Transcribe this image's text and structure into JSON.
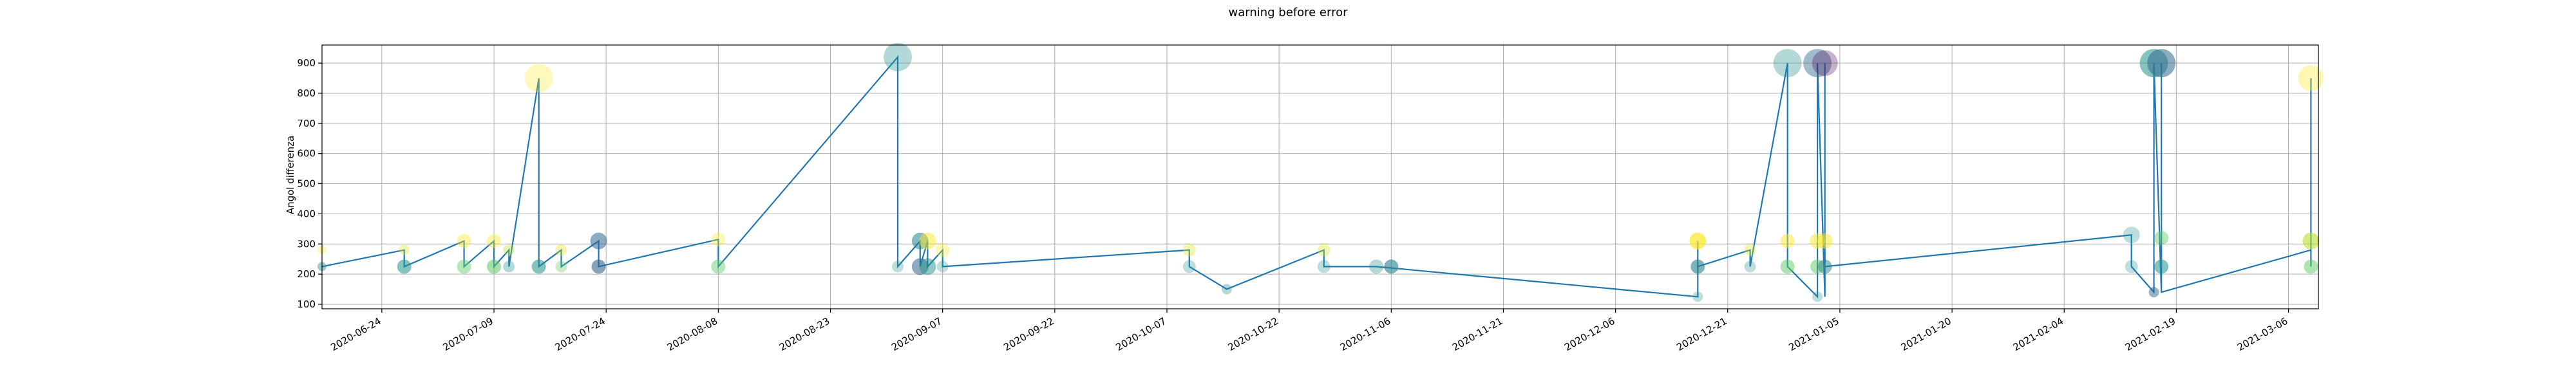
{
  "chart_data": {
    "type": "scatter",
    "title": "warning before error",
    "xlabel": "",
    "ylabel": "Angol differenza",
    "grid": true,
    "x_ticks": [
      "2020-06-24",
      "2020-07-09",
      "2020-07-24",
      "2020-08-08",
      "2020-08-23",
      "2020-09-07",
      "2020-09-22",
      "2020-10-07",
      "2020-10-22",
      "2020-11-06",
      "2020-11-21",
      "2020-12-06",
      "2020-12-21",
      "2021-01-05",
      "2021-01-20",
      "2021-02-04",
      "2021-02-19",
      "2021-03-06"
    ],
    "y_ticks": [
      100,
      200,
      300,
      400,
      500,
      600,
      700,
      800,
      900
    ],
    "xlim": [
      "2020-06-16",
      "2021-03-10"
    ],
    "ylim": [
      85,
      960
    ],
    "line_points": [
      {
        "x": "2020-06-16",
        "y": 225
      },
      {
        "x": "2020-06-27",
        "y": 280
      },
      {
        "x": "2020-06-27",
        "y": 225
      },
      {
        "x": "2020-07-05",
        "y": 310
      },
      {
        "x": "2020-07-05",
        "y": 225
      },
      {
        "x": "2020-07-09",
        "y": 310
      },
      {
        "x": "2020-07-09",
        "y": 225
      },
      {
        "x": "2020-07-11",
        "y": 280
      },
      {
        "x": "2020-07-11",
        "y": 225
      },
      {
        "x": "2020-07-15",
        "y": 850
      },
      {
        "x": "2020-07-15",
        "y": 225
      },
      {
        "x": "2020-07-18",
        "y": 280
      },
      {
        "x": "2020-07-18",
        "y": 225
      },
      {
        "x": "2020-07-23",
        "y": 310
      },
      {
        "x": "2020-07-23",
        "y": 225
      },
      {
        "x": "2020-08-08",
        "y": 315
      },
      {
        "x": "2020-08-08",
        "y": 225
      },
      {
        "x": "2020-09-01",
        "y": 920
      },
      {
        "x": "2020-09-01",
        "y": 225
      },
      {
        "x": "2020-09-04",
        "y": 310
      },
      {
        "x": "2020-09-04",
        "y": 225
      },
      {
        "x": "2020-09-05",
        "y": 310
      },
      {
        "x": "2020-09-05",
        "y": 225
      },
      {
        "x": "2020-09-07",
        "y": 280
      },
      {
        "x": "2020-09-07",
        "y": 225
      },
      {
        "x": "2020-10-10",
        "y": 280
      },
      {
        "x": "2020-10-10",
        "y": 225
      },
      {
        "x": "2020-10-15",
        "y": 150
      },
      {
        "x": "2020-10-28",
        "y": 280
      },
      {
        "x": "2020-10-28",
        "y": 225
      },
      {
        "x": "2020-11-04",
        "y": 225
      },
      {
        "x": "2020-12-17",
        "y": 125
      },
      {
        "x": "2020-12-17",
        "y": 310
      },
      {
        "x": "2020-12-17",
        "y": 225
      },
      {
        "x": "2020-12-24",
        "y": 280
      },
      {
        "x": "2020-12-24",
        "y": 225
      },
      {
        "x": "2020-12-29",
        "y": 900
      },
      {
        "x": "2020-12-29",
        "y": 225
      },
      {
        "x": "2021-01-02",
        "y": 125
      },
      {
        "x": "2021-01-02",
        "y": 900
      },
      {
        "x": "2021-01-03",
        "y": 125
      },
      {
        "x": "2021-01-03",
        "y": 900
      },
      {
        "x": "2021-01-03",
        "y": 225
      },
      {
        "x": "2021-02-13",
        "y": 330
      },
      {
        "x": "2021-02-13",
        "y": 225
      },
      {
        "x": "2021-02-16",
        "y": 140
      },
      {
        "x": "2021-02-16",
        "y": 900
      },
      {
        "x": "2021-02-17",
        "y": 140
      },
      {
        "x": "2021-02-17",
        "y": 900
      },
      {
        "x": "2021-02-17",
        "y": 140
      },
      {
        "x": "2021-03-09",
        "y": 280
      },
      {
        "x": "2021-03-09",
        "y": 850
      },
      {
        "x": "2021-03-09",
        "y": 225
      }
    ],
    "points": [
      {
        "x": "2020-06-16",
        "y": 280,
        "r": 7,
        "c": "#fde725",
        "a": 0.3
      },
      {
        "x": "2020-06-16",
        "y": 225,
        "r": 7,
        "c": "#21918c",
        "a": 0.45
      },
      {
        "x": "2020-06-27",
        "y": 280,
        "r": 8,
        "c": "#dde318",
        "a": 0.35
      },
      {
        "x": "2020-06-27",
        "y": 225,
        "r": 11,
        "c": "#21918c",
        "a": 0.55
      },
      {
        "x": "2020-07-05",
        "y": 310,
        "r": 11,
        "c": "#fde725",
        "a": 0.4
      },
      {
        "x": "2020-07-05",
        "y": 225,
        "r": 11,
        "c": "#5ec962",
        "a": 0.45
      },
      {
        "x": "2020-07-09",
        "y": 310,
        "r": 11,
        "c": "#fde725",
        "a": 0.4
      },
      {
        "x": "2020-07-09",
        "y": 225,
        "r": 11,
        "c": "#5ec962",
        "a": 0.55
      },
      {
        "x": "2020-07-11",
        "y": 280,
        "r": 9,
        "c": "#b5de2b",
        "a": 0.35
      },
      {
        "x": "2020-07-11",
        "y": 225,
        "r": 9,
        "c": "#21918c",
        "a": 0.35
      },
      {
        "x": "2020-07-15",
        "y": 850,
        "r": 22,
        "c": "#fde725",
        "a": 0.3
      },
      {
        "x": "2020-07-15",
        "y": 225,
        "r": 11,
        "c": "#21918c",
        "a": 0.55
      },
      {
        "x": "2020-07-18",
        "y": 280,
        "r": 9,
        "c": "#dde318",
        "a": 0.35
      },
      {
        "x": "2020-07-18",
        "y": 225,
        "r": 9,
        "c": "#5ec962",
        "a": 0.35
      },
      {
        "x": "2020-07-23",
        "y": 310,
        "r": 13,
        "c": "#31688e",
        "a": 0.55
      },
      {
        "x": "2020-07-23",
        "y": 225,
        "r": 11,
        "c": "#31688e",
        "a": 0.6
      },
      {
        "x": "2020-08-08",
        "y": 315,
        "r": 11,
        "c": "#fde725",
        "a": 0.35
      },
      {
        "x": "2020-08-08",
        "y": 225,
        "r": 11,
        "c": "#5ec962",
        "a": 0.45
      },
      {
        "x": "2020-09-01",
        "y": 920,
        "r": 22,
        "c": "#21918c",
        "a": 0.35
      },
      {
        "x": "2020-09-01",
        "y": 225,
        "r": 9,
        "c": "#21918c",
        "a": 0.3
      },
      {
        "x": "2020-09-04",
        "y": 310,
        "r": 13,
        "c": "#26828e",
        "a": 0.55
      },
      {
        "x": "2020-09-04",
        "y": 225,
        "r": 13,
        "c": "#31688e",
        "a": 0.55
      },
      {
        "x": "2020-09-05",
        "y": 310,
        "r": 13,
        "c": "#fde725",
        "a": 0.5
      },
      {
        "x": "2020-09-05",
        "y": 225,
        "r": 13,
        "c": "#21918c",
        "a": 0.5
      },
      {
        "x": "2020-09-07",
        "y": 280,
        "r": 11,
        "c": "#fde725",
        "a": 0.35
      },
      {
        "x": "2020-09-07",
        "y": 225,
        "r": 9,
        "c": "#21918c",
        "a": 0.3
      },
      {
        "x": "2020-10-10",
        "y": 280,
        "r": 10,
        "c": "#dde318",
        "a": 0.35
      },
      {
        "x": "2020-10-10",
        "y": 225,
        "r": 10,
        "c": "#21918c",
        "a": 0.3
      },
      {
        "x": "2020-10-15",
        "y": 150,
        "r": 8,
        "c": "#21918c",
        "a": 0.35
      },
      {
        "x": "2020-10-28",
        "y": 280,
        "r": 10,
        "c": "#dde318",
        "a": 0.35
      },
      {
        "x": "2020-10-28",
        "y": 225,
        "r": 10,
        "c": "#21918c",
        "a": 0.3
      },
      {
        "x": "2020-11-04",
        "y": 225,
        "r": 11,
        "c": "#21918c",
        "a": 0.35
      },
      {
        "x": "2020-11-06",
        "y": 225,
        "r": 11,
        "c": "#26828e",
        "a": 0.6
      },
      {
        "x": "2020-12-17",
        "y": 125,
        "r": 8,
        "c": "#21918c",
        "a": 0.3
      },
      {
        "x": "2020-12-17",
        "y": 310,
        "r": 13,
        "c": "#fde725",
        "a": 0.7
      },
      {
        "x": "2020-12-17",
        "y": 225,
        "r": 11,
        "c": "#26828e",
        "a": 0.6
      },
      {
        "x": "2020-12-24",
        "y": 280,
        "r": 9,
        "c": "#dde318",
        "a": 0.35
      },
      {
        "x": "2020-12-24",
        "y": 225,
        "r": 9,
        "c": "#21918c",
        "a": 0.3
      },
      {
        "x": "2020-12-29",
        "y": 900,
        "r": 22,
        "c": "#21918c",
        "a": 0.35
      },
      {
        "x": "2020-12-29",
        "y": 310,
        "r": 11,
        "c": "#fde725",
        "a": 0.5
      },
      {
        "x": "2020-12-29",
        "y": 225,
        "r": 11,
        "c": "#5ec962",
        "a": 0.5
      },
      {
        "x": "2021-01-02",
        "y": 310,
        "r": 12,
        "c": "#fde725",
        "a": 0.5
      },
      {
        "x": "2021-01-02",
        "y": 225,
        "r": 11,
        "c": "#5ec962",
        "a": 0.5
      },
      {
        "x": "2021-01-02",
        "y": 125,
        "r": 8,
        "c": "#21918c",
        "a": 0.3
      },
      {
        "x": "2021-01-02",
        "y": 900,
        "r": 22,
        "c": "#31688e",
        "a": 0.45
      },
      {
        "x": "2021-01-03",
        "y": 900,
        "r": 20,
        "c": "#440154",
        "a": 0.3
      },
      {
        "x": "2021-01-03",
        "y": 310,
        "r": 12,
        "c": "#fde725",
        "a": 0.5
      },
      {
        "x": "2021-01-03",
        "y": 225,
        "r": 11,
        "c": "#26828e",
        "a": 0.5
      },
      {
        "x": "2021-02-13",
        "y": 330,
        "r": 13,
        "c": "#21918c",
        "a": 0.3
      },
      {
        "x": "2021-02-13",
        "y": 225,
        "r": 10,
        "c": "#21918c",
        "a": 0.3
      },
      {
        "x": "2021-02-16",
        "y": 900,
        "r": 22,
        "c": "#21918c",
        "a": 0.55
      },
      {
        "x": "2021-02-16",
        "y": 140,
        "r": 8,
        "c": "#31688e",
        "a": 0.5
      },
      {
        "x": "2021-02-17",
        "y": 900,
        "r": 22,
        "c": "#31688e",
        "a": 0.55
      },
      {
        "x": "2021-02-17",
        "y": 320,
        "r": 11,
        "c": "#5ec962",
        "a": 0.45
      },
      {
        "x": "2021-02-17",
        "y": 225,
        "r": 11,
        "c": "#21918c",
        "a": 0.55
      },
      {
        "x": "2021-03-09",
        "y": 850,
        "r": 20,
        "c": "#fde725",
        "a": 0.35
      },
      {
        "x": "2021-03-09",
        "y": 310,
        "r": 13,
        "c": "#b5de2b",
        "a": 0.6
      },
      {
        "x": "2021-03-09",
        "y": 225,
        "r": 11,
        "c": "#5ec962",
        "a": 0.5
      }
    ]
  }
}
